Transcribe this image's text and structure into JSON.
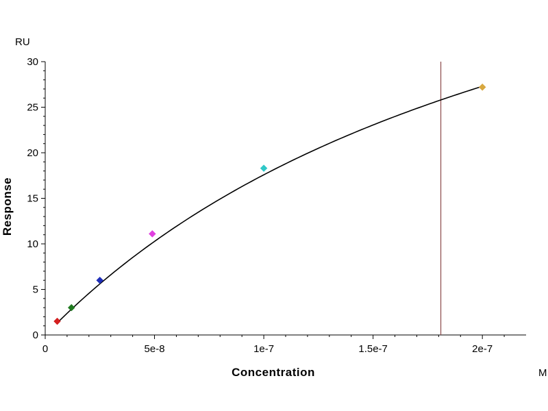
{
  "chart_data": {
    "type": "scatter",
    "title": "",
    "xlabel": "Concentration",
    "ylabel": "Response",
    "x_unit": "M",
    "y_unit": "RU",
    "xlim": [
      0,
      2.2e-07
    ],
    "ylim": [
      0,
      30
    ],
    "x_ticks": [
      0,
      5e-08,
      1e-07,
      1.5e-07,
      2e-07
    ],
    "x_tick_labels": [
      "0",
      "5e-8",
      "1e-7",
      "1.5e-7",
      "2e-7"
    ],
    "y_ticks": [
      0,
      5,
      10,
      15,
      20,
      25,
      30
    ],
    "y_tick_labels": [
      "0",
      "5",
      "10",
      "15",
      "20",
      "25",
      "30"
    ],
    "grid": false,
    "points": [
      {
        "x": 5.5e-09,
        "y": 1.5,
        "color": "#d42020"
      },
      {
        "x": 1.2e-08,
        "y": 3.0,
        "color": "#207a20"
      },
      {
        "x": 2.5e-08,
        "y": 6.0,
        "color": "#1f2fb8"
      },
      {
        "x": 4.9e-08,
        "y": 11.1,
        "color": "#e040e0"
      },
      {
        "x": 1e-07,
        "y": 18.3,
        "color": "#30c8c8"
      },
      {
        "x": 2e-07,
        "y": 27.2,
        "color": "#d8a840"
      }
    ],
    "fit_curve": {
      "model": "steady-state affinity",
      "rmax": 61.0,
      "kd": 2.47e-07,
      "x_range": [
        5.5e-09,
        2e-07
      ],
      "color": "#000000"
    },
    "vertical_marker": {
      "x": 1.81e-07,
      "color": "#8b4a4a"
    }
  }
}
